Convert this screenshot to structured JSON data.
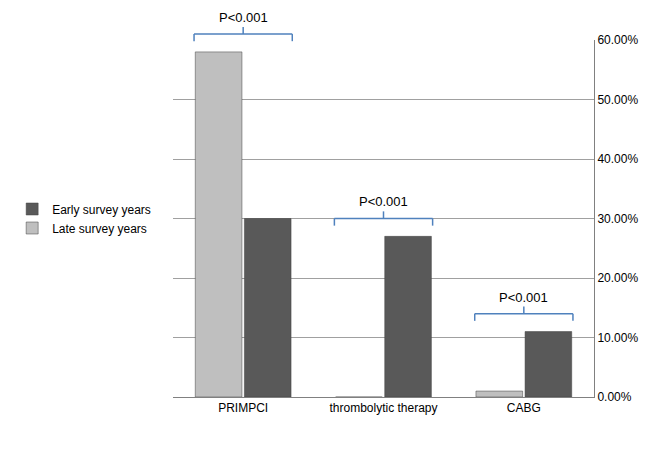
{
  "chart_data": {
    "type": "bar",
    "categories": [
      "PRIMPCI",
      "thrombolytic therapy",
      "CABG"
    ],
    "series": [
      {
        "name": "Early survey years",
        "color": "#595959",
        "values": [
          30,
          27,
          11
        ]
      },
      {
        "name": "Late survey years",
        "color": "#bfbfbf",
        "values": [
          58,
          0,
          1
        ]
      }
    ],
    "ylim": [
      0,
      60
    ],
    "yticks": [
      {
        "value": 0,
        "label": "0.00%"
      },
      {
        "value": 10,
        "label": "10.00%"
      },
      {
        "value": 20,
        "label": "20.00%"
      },
      {
        "value": 30,
        "label": "30.00%"
      },
      {
        "value": 40,
        "label": "40.00%"
      },
      {
        "value": 50,
        "label": "50.00%"
      },
      {
        "value": 60,
        "label": "60.00%"
      }
    ],
    "grid": true,
    "legend": "left",
    "annotations": [
      {
        "text": "P<0.001",
        "category": "PRIMPCI"
      },
      {
        "text": "P<0.001",
        "category": "thrombolytic therapy"
      },
      {
        "text": "P<0.001",
        "category": "CABG"
      }
    ]
  }
}
